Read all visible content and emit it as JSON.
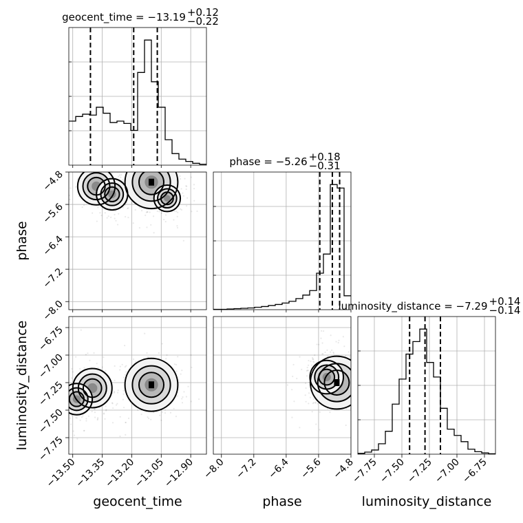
{
  "chart_data": {
    "type": "corner",
    "parameters": [
      "geocent_time",
      "phase",
      "luminosity_distance"
    ],
    "axis_labels": {
      "geocent_time": "geocent_time",
      "phase": "phase",
      "luminosity_distance": "luminosity_distance"
    },
    "ranges": {
      "geocent_time": [
        -13.52,
        -12.82
      ],
      "phase": [
        -8.2,
        -4.8
      ],
      "luminosity_distance": [
        -7.9,
        -6.65
      ]
    },
    "ticks": {
      "geocent_time": [
        -13.5,
        -13.35,
        -13.2,
        -13.05,
        -12.9
      ],
      "phase": [
        -8.0,
        -7.2,
        -6.4,
        -5.6,
        -4.8
      ],
      "luminosity_distance": [
        -7.75,
        -7.5,
        -7.25,
        -7.0,
        -6.75
      ]
    },
    "tick_labels": {
      "geocent_time": [
        "−13.50",
        "−13.35",
        "−13.20",
        "−13.05",
        "−12.90"
      ],
      "phase": [
        "−8.0",
        "−7.2",
        "−6.4",
        "−5.6",
        "−4.8"
      ],
      "luminosity_distance": [
        "−7.75",
        "−7.50",
        "−7.25",
        "−7.00",
        "−6.75"
      ]
    },
    "titles": {
      "geocent_time": {
        "prefix": "geocent_time = −13.19",
        "plus": "+0.12",
        "minus": "−0.22"
      },
      "phase": {
        "prefix": "phase = −5.26",
        "plus": "+0.18",
        "minus": "−0.31"
      },
      "luminosity_distance": {
        "prefix": "luminosity_distance = −7.29",
        "plus": "+0.14",
        "minus": "−0.14"
      }
    },
    "quantiles": {
      "geocent_time": [
        -13.41,
        -13.19,
        -13.07
      ],
      "phase": [
        -5.57,
        -5.26,
        -5.08
      ],
      "luminosity_distance": [
        -7.43,
        -7.29,
        -7.15
      ]
    },
    "histograms": {
      "geocent_time": {
        "edges": [
          -13.52,
          -13.485,
          -13.45,
          -13.415,
          -13.38,
          -13.345,
          -13.31,
          -13.275,
          -13.24,
          -13.205,
          -13.17,
          -13.135,
          -13.1,
          -13.065,
          -13.03,
          -12.995,
          -12.96,
          -12.925,
          -12.89,
          -12.855,
          -12.82
        ],
        "counts": [
          0.95,
          1.05,
          1.1,
          1.08,
          1.25,
          1.12,
          0.92,
          0.95,
          0.9,
          0.75,
          2.0,
          2.7,
          1.8,
          1.25,
          0.55,
          0.25,
          0.13,
          0.08,
          0.04,
          0.02
        ]
      },
      "phase": {
        "edges": [
          -8.2,
          -8.03,
          -7.86,
          -7.69,
          -7.52,
          -7.35,
          -7.18,
          -7.01,
          -6.84,
          -6.67,
          -6.5,
          -6.33,
          -6.16,
          -5.99,
          -5.82,
          -5.65,
          -5.48,
          -5.31,
          -5.14,
          -4.97,
          -4.8
        ],
        "counts": [
          0.01,
          0.01,
          0.02,
          0.03,
          0.04,
          0.05,
          0.07,
          0.09,
          0.12,
          0.15,
          0.19,
          0.24,
          0.32,
          0.42,
          0.55,
          1.05,
          1.6,
          3.6,
          3.5,
          0.4
        ]
      },
      "luminosity_distance": {
        "edges": [
          -7.9,
          -7.8375,
          -7.775,
          -7.7125,
          -7.65,
          -7.5875,
          -7.525,
          -7.4625,
          -7.4,
          -7.3375,
          -7.275,
          -7.2125,
          -7.15,
          -7.0875,
          -7.025,
          -6.9625,
          -6.9,
          -6.8375,
          -6.775,
          -6.7125,
          -6.65
        ],
        "counts": [
          0.02,
          0.05,
          0.1,
          0.25,
          0.55,
          1.2,
          1.8,
          2.4,
          2.7,
          3.0,
          2.2,
          1.85,
          1.1,
          0.6,
          0.45,
          0.3,
          0.12,
          0.06,
          0.03,
          0.01
        ]
      }
    },
    "pairs": [
      {
        "x": "geocent_time",
        "y": "phase",
        "density_peaks": [
          {
            "x": -13.1,
            "y": -5.05,
            "weight": 1.0
          },
          {
            "x": -13.38,
            "y": -5.15,
            "weight": 0.5
          },
          {
            "x": -13.3,
            "y": -5.35,
            "weight": 0.35
          },
          {
            "x": -13.02,
            "y": -5.45,
            "weight": 0.25
          }
        ]
      },
      {
        "x": "geocent_time",
        "y": "luminosity_distance",
        "density_peaks": [
          {
            "x": -13.1,
            "y": -7.27,
            "weight": 1.0
          },
          {
            "x": -13.4,
            "y": -7.3,
            "weight": 0.55
          },
          {
            "x": -13.48,
            "y": -7.4,
            "weight": 0.35
          }
        ]
      },
      {
        "x": "phase",
        "y": "luminosity_distance",
        "density_peaks": [
          {
            "x": -5.15,
            "y": -7.25,
            "weight": 1.0
          },
          {
            "x": -5.4,
            "y": -7.2,
            "weight": 0.4
          }
        ]
      }
    ],
    "grid": true
  }
}
